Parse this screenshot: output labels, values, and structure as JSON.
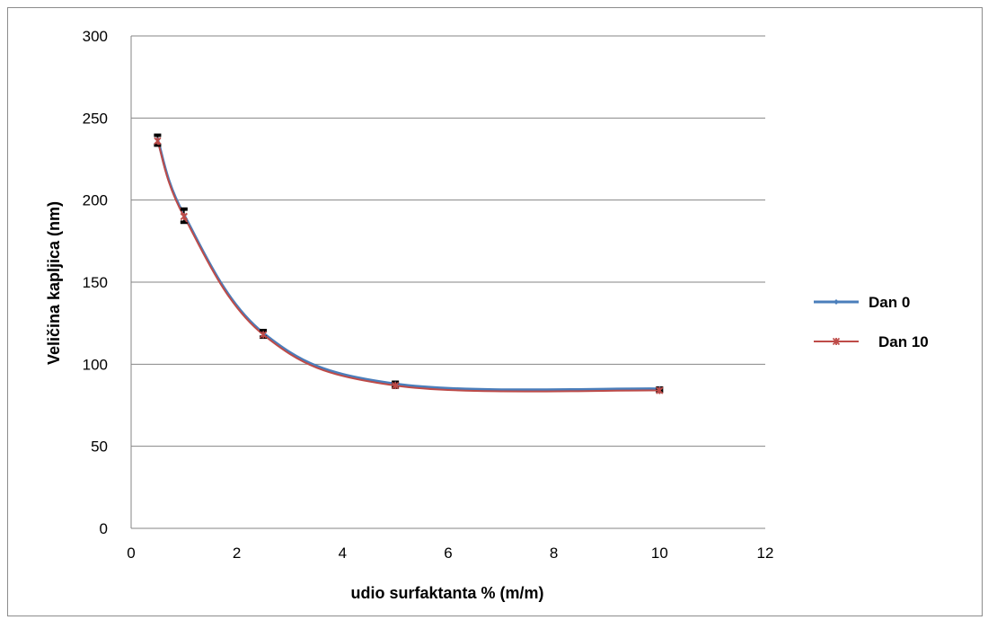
{
  "chart_data": {
    "type": "scatter",
    "title": "",
    "xlabel": "udio surfaktanta % (m/m)",
    "ylabel": "Veličina kapljica (nm)",
    "xlim": [
      0,
      12
    ],
    "ylim": [
      0,
      300
    ],
    "x_ticks": [
      0,
      2,
      4,
      6,
      8,
      10,
      12
    ],
    "y_ticks": [
      0,
      50,
      100,
      150,
      200,
      250,
      300
    ],
    "grid": "horizontal",
    "smooth_lines": true,
    "legend_position": "right",
    "series": [
      {
        "name": "Dan 0",
        "color": "#4a7ebb",
        "marker": "diamond",
        "x": [
          0.5,
          1,
          2.5,
          5,
          10
        ],
        "y": [
          237,
          191,
          119,
          88,
          85
        ],
        "error": [
          3,
          4,
          2,
          1.5,
          1
        ]
      },
      {
        "name": "Dan 10",
        "color": "#be4b48",
        "marker": "asterisk",
        "x": [
          0.5,
          1,
          2.5,
          5,
          10
        ],
        "y": [
          236,
          190,
          118,
          87,
          84
        ],
        "error": [
          3,
          4,
          2,
          1.5,
          1
        ]
      }
    ]
  }
}
